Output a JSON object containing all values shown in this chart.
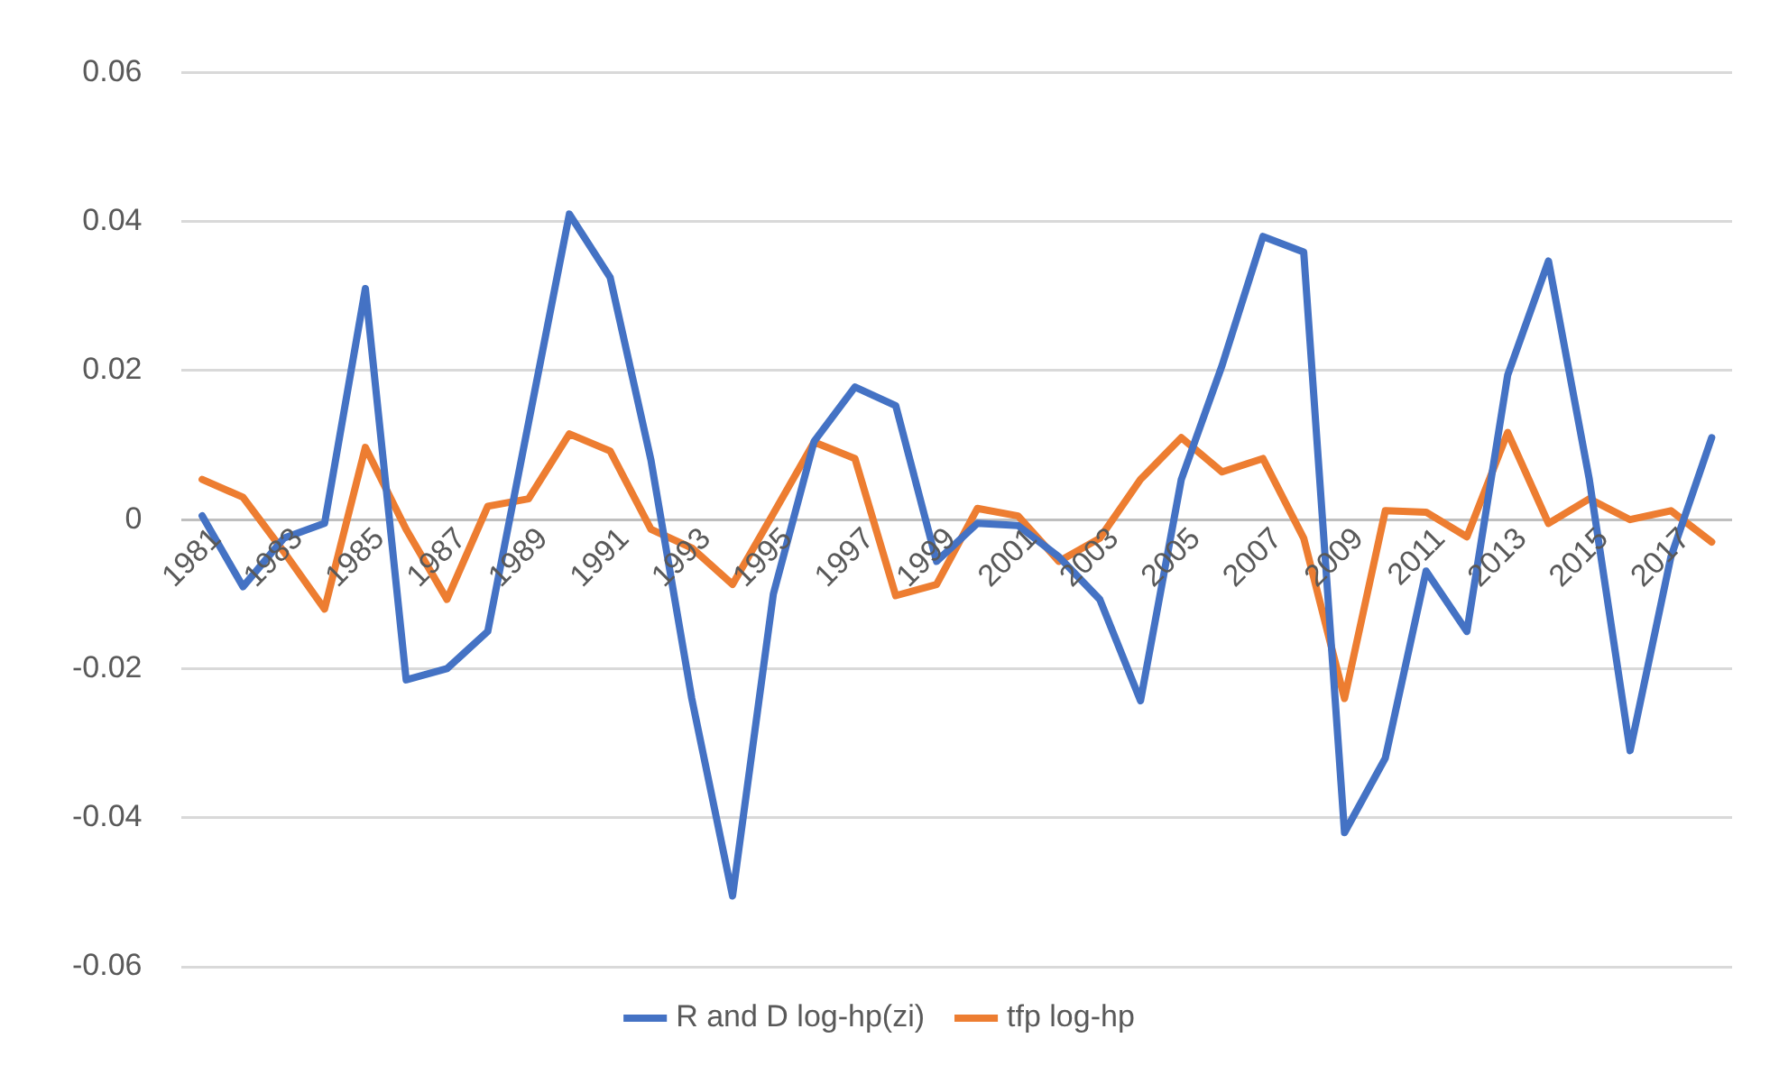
{
  "chart_data": {
    "type": "line",
    "categories": [
      "1981",
      null,
      "1983",
      null,
      "1985",
      null,
      "1987",
      null,
      "1989",
      null,
      "1991",
      null,
      "1993",
      null,
      "1995",
      null,
      "1997",
      null,
      "1999",
      null,
      "2001",
      null,
      "2003",
      null,
      "2005",
      null,
      "2007",
      null,
      "2009",
      null,
      "2011",
      null,
      "2013",
      null,
      "2015",
      null,
      "2017",
      null
    ],
    "series": [
      {
        "name": "R and D log-hp(zi)",
        "color": "#4472c4",
        "values": [
          0.0005,
          -0.009,
          -0.0025,
          -0.0005,
          0.031,
          -0.0215,
          -0.02,
          -0.015,
          0.013,
          0.041,
          0.0325,
          0.008,
          -0.024,
          -0.0505,
          -0.01,
          0.0105,
          0.0178,
          0.0153,
          -0.0056,
          -0.0005,
          -0.0008,
          -0.005,
          -0.0107,
          -0.0243,
          0.0054,
          0.0207,
          0.038,
          0.0359,
          -0.042,
          -0.032,
          -0.0069,
          -0.015,
          0.0194,
          0.0347,
          0.0054,
          -0.031,
          -0.005,
          0.011
        ]
      },
      {
        "name": "tfp log-hp",
        "color": "#ed7d31",
        "values": [
          0.0054,
          0.003,
          -0.0043,
          -0.012,
          0.0097,
          -0.0013,
          -0.0107,
          0.0018,
          0.0028,
          0.0115,
          0.0092,
          -0.0013,
          -0.0038,
          -0.0087,
          0.0008,
          0.0104,
          0.0082,
          -0.0102,
          -0.0087,
          0.0015,
          0.0005,
          -0.0056,
          -0.0025,
          0.0054,
          0.011,
          0.0064,
          0.0082,
          -0.0025,
          -0.024,
          0.0012,
          0.001,
          -0.0023,
          0.0117,
          -0.0005,
          0.0028,
          0,
          0.0012,
          -0.003
        ]
      }
    ],
    "ylim": [
      -0.06,
      0.06
    ],
    "yticks": [
      -0.06,
      -0.04,
      -0.02,
      0,
      0.02,
      0.04,
      0.06
    ],
    "grid": "y",
    "legend": "bottom",
    "marker": "none",
    "line_style": "solid"
  }
}
